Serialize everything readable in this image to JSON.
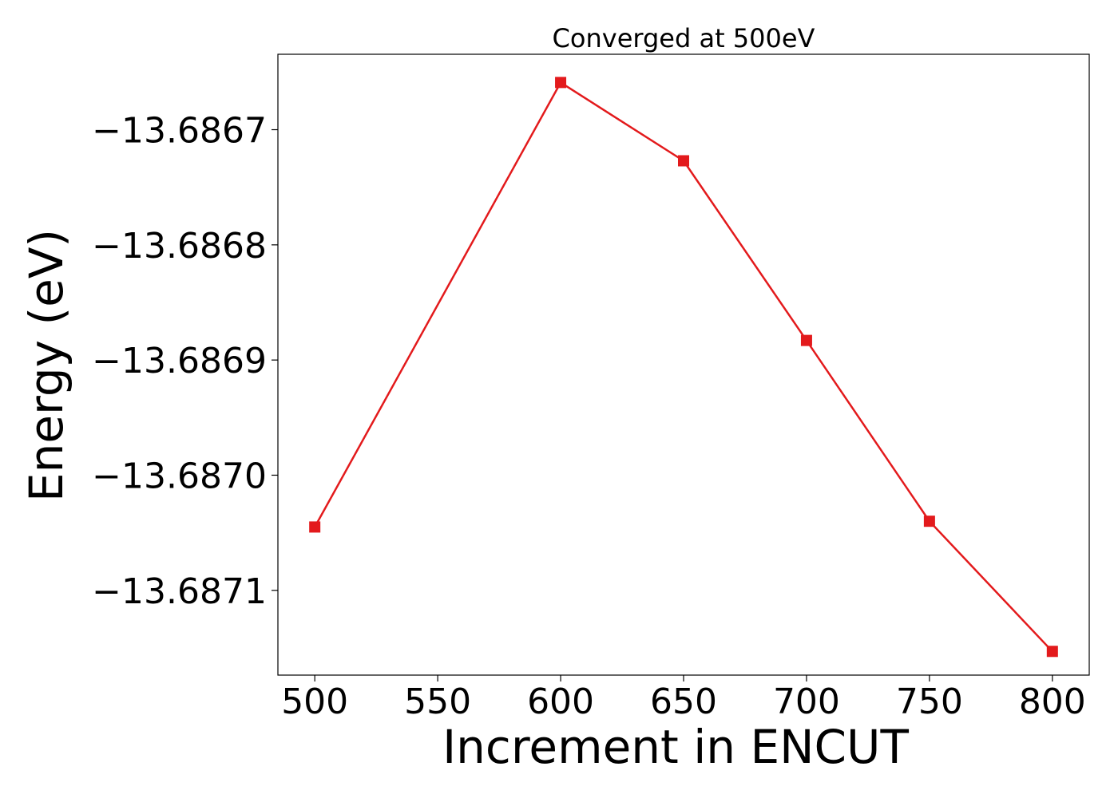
{
  "chart_data": {
    "type": "line",
    "title": "Converged at 500eV",
    "xlabel": "Increment in ENCUT",
    "ylabel": "Energy (eV)",
    "x": [
      500,
      600,
      650,
      700,
      750,
      800
    ],
    "series": [
      {
        "values": [
          -13.687045,
          -13.686659,
          -13.686727,
          -13.686883,
          -13.68704,
          -13.687153
        ],
        "color": "#e31a1c",
        "marker": "square"
      }
    ],
    "xticks": [
      500,
      550,
      600,
      650,
      700,
      750,
      800
    ],
    "xtick_labels": [
      "500",
      "550",
      "600",
      "650",
      "700",
      "750",
      "800"
    ],
    "yticks": [
      -13.6867,
      -13.6868,
      -13.6869,
      -13.687,
      -13.6871
    ],
    "ytick_labels": [
      "−13.6867",
      "−13.6868",
      "−13.6869",
      "−13.6870",
      "−13.6871"
    ],
    "xlim": [
      485,
      815
    ],
    "ylim": [
      -13.6871736,
      -13.6866345
    ],
    "grid": false,
    "legend": false
  }
}
